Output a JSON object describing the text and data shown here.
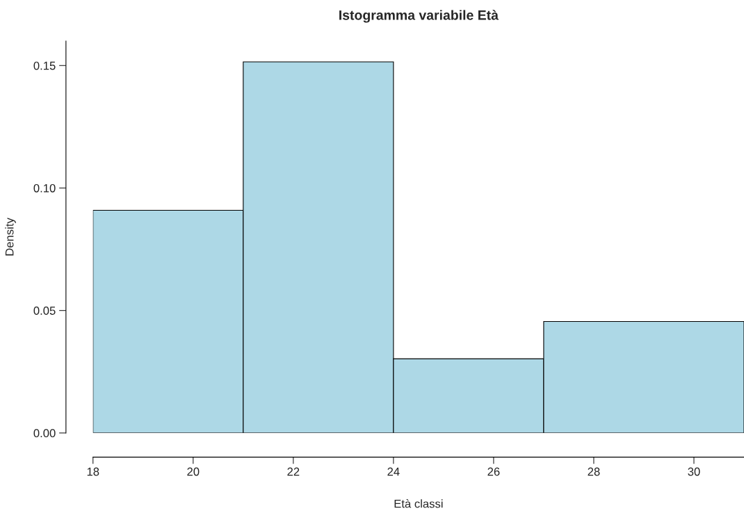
{
  "chart_data": {
    "type": "histogram",
    "title": "Istogramma variabile Età",
    "xlabel": "Età classi",
    "ylabel": "Density",
    "bins": [
      18,
      21,
      24,
      27,
      31
    ],
    "values": [
      0.0909,
      0.1515,
      0.0303,
      0.0455
    ],
    "color": "#add8e6",
    "xlim": [
      18,
      31
    ],
    "ylim": [
      0,
      0.16
    ],
    "xticks": [
      18,
      20,
      22,
      24,
      26,
      28,
      30
    ],
    "yticks": [
      {
        "value": 0,
        "label": "0.00"
      },
      {
        "value": 0.05,
        "label": "0.05"
      },
      {
        "value": 0.1,
        "label": "0.10"
      },
      {
        "value": 0.15,
        "label": "0.15"
      }
    ],
    "grid": false
  }
}
